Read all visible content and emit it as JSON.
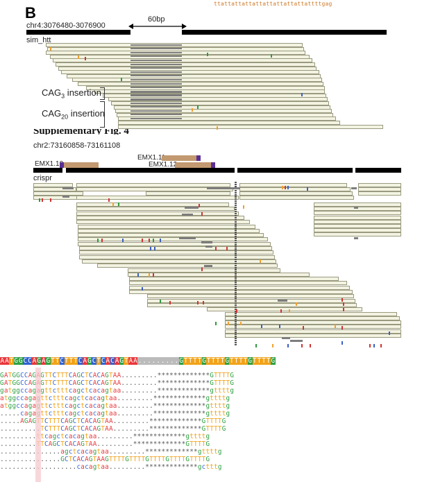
{
  "top_sequence": "ttattattattattattattattattattttgag",
  "panel_b": {
    "letter": "B",
    "locus": "chr4:3076480-3076900",
    "scale_label": "60bp",
    "track_label": "sim_htt",
    "annotation_1_prefix": "CAG",
    "annotation_1_sub": "3",
    "annotation_1_suffix": " insertion",
    "annotation_2_prefix": "CAG",
    "annotation_2_sub": "20",
    "annotation_2_suffix": " insertion"
  },
  "panel_c": {
    "partial_heading": "Supplementary Fig. 4",
    "locus": "chr2:73160858-73161108",
    "guides": [
      {
        "name": "EMX1.11"
      },
      {
        "name": "EMX1.10"
      },
      {
        "name": "EMX1.12"
      }
    ],
    "track_label": "crispr"
  },
  "alignment": {
    "reference": "AATGGCCAGAGTTCTTTCAGCTCACAGTAA.........GTTTTGTTTTGTTTTGTTTTG",
    "rows": [
      "GATGGCCAGAGTTCTTTCAGCTCACAGTAA.........*************GTTTTG",
      "GATGGCCAGAGTTCTTTCAGCTCACAGTAA.........*************GTTTTG",
      "gatggccagagttctttcagctcacagtaa.........*************gttttg",
      "atggccagagttctttcagctcacagtaa.........*************gttttg",
      "atggccagagttctttcagctcacagtaa.........*************gttttg",
      ".....cagagttctttcagctcacagtaa.........*************gttttg",
      ".....AGAGTTCTTTCAGCTCACAGTAA.........*************GTTTTG",
      "..........TCTTTCAGCTCACAGTAA.........*************GTTTTG",
      ".........ttcagctcacagtaa.........*************gttttg",
      ".........TTCAGCTCACAGTAA.........*************GTTTTG",
      "...............agctcacagtaa.........*************gttttg",
      "...............GCTCACAGTAAGTTTTGTTTTGTTTTGTTTTGTTTTG",
      "...................cacagtaa.........*************gctttg"
    ]
  }
}
